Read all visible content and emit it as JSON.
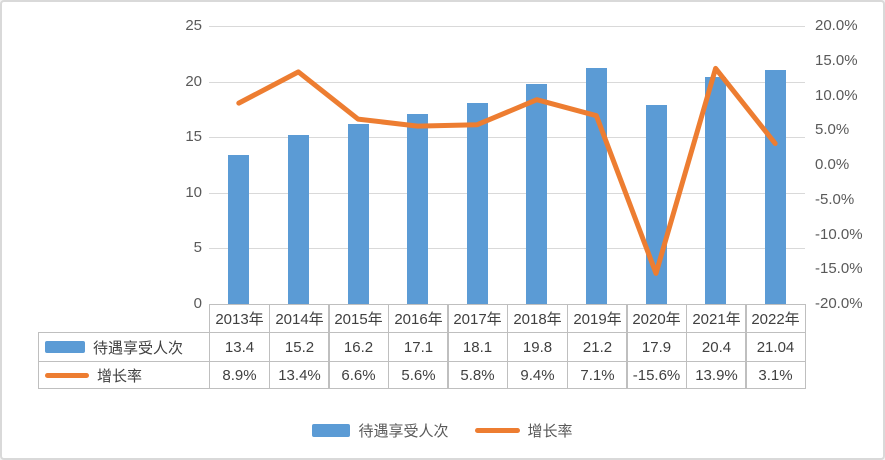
{
  "chart_data": {
    "type": "bar",
    "subtype": "combo-bar-line",
    "title": "",
    "categories": [
      "2013年",
      "2014年",
      "2015年",
      "2016年",
      "2017年",
      "2018年",
      "2019年",
      "2020年",
      "2021年",
      "2022年"
    ],
    "series": [
      {
        "name": "待遇享受人次",
        "kind": "bar",
        "axis": "left",
        "color": "#5B9BD5",
        "values": [
          13.4,
          15.2,
          16.2,
          17.1,
          18.1,
          19.8,
          21.2,
          17.9,
          20.4,
          21.04
        ],
        "labels": [
          "13.4",
          "15.2",
          "16.2",
          "17.1",
          "18.1",
          "19.8",
          "21.2",
          "17.9",
          "20.4",
          "21.04"
        ]
      },
      {
        "name": "增长率",
        "kind": "line",
        "axis": "right",
        "color": "#ED7D31",
        "values": [
          8.9,
          13.4,
          6.6,
          5.6,
          5.8,
          9.4,
          7.1,
          -15.6,
          13.9,
          3.1
        ],
        "labels": [
          "8.9%",
          "13.4%",
          "6.6%",
          "5.6%",
          "5.8%",
          "9.4%",
          "7.1%",
          "-15.6%",
          "13.9%",
          "3.1%"
        ]
      }
    ],
    "left_axis": {
      "min": 0,
      "max": 25,
      "tick_values": [
        0,
        5,
        10,
        15,
        20,
        25
      ],
      "tick_labels": [
        "0",
        "5",
        "10",
        "15",
        "20",
        "25"
      ]
    },
    "right_axis": {
      "min": -20,
      "max": 20,
      "tick_values": [
        20,
        15,
        10,
        5,
        0,
        -5,
        -10,
        -15,
        -20
      ],
      "tick_labels": [
        "20.0%",
        "15.0%",
        "10.0%",
        "5.0%",
        "0.0%",
        "-5.0%",
        "-10.0%",
        "-15.0%",
        "-20.0%"
      ]
    },
    "grid": true,
    "legend_position": "bottom",
    "data_table_shown": true
  },
  "colors": {
    "bar": "#5B9BD5",
    "line": "#ED7D31",
    "gridline": "#D9D9D9",
    "table_border": "#BFBFBF",
    "axis_text": "#595959",
    "table_text": "#404040",
    "frame_border": "#D9D9D9",
    "background": "#FFFFFF"
  }
}
